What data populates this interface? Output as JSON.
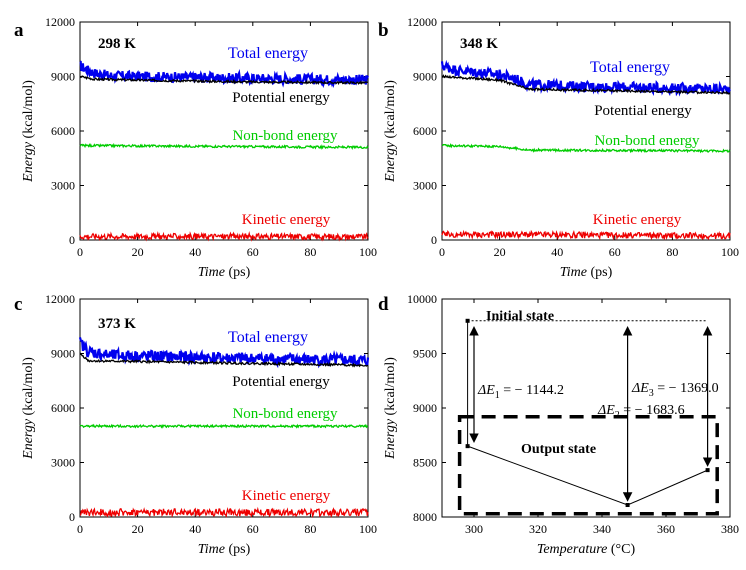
{
  "chart_data": [
    {
      "panel": "a",
      "type": "line",
      "temperature_label": "298 K",
      "xlabel": {
        "italic": "Time",
        "rest": " (ps)"
      },
      "ylabel": {
        "italic": "Energy",
        "rest": " (kcal/mol)"
      },
      "xlim": [
        0,
        100
      ],
      "ylim": [
        0,
        12000
      ],
      "xticks": [
        0,
        20,
        40,
        60,
        80,
        100
      ],
      "yticks": [
        0,
        3000,
        6000,
        9000,
        12000
      ],
      "series": [
        {
          "name": "Total energy",
          "color": "#0000ee",
          "points": [
            [
              0,
              9600
            ],
            [
              2,
              9400
            ],
            [
              5,
              9200
            ],
            [
              10,
              9050
            ],
            [
              20,
              9000
            ],
            [
              40,
              8950
            ],
            [
              60,
              8900
            ],
            [
              80,
              8850
            ],
            [
              100,
              8820
            ]
          ],
          "noise": 280
        },
        {
          "name": "Potential energy",
          "color": "#000000",
          "points": [
            [
              0,
              9000
            ],
            [
              5,
              8850
            ],
            [
              20,
              8800
            ],
            [
              60,
              8700
            ],
            [
              100,
              8650
            ]
          ],
          "noise": 60
        },
        {
          "name": "Non-bond energy",
          "color": "#00cc00",
          "points": [
            [
              0,
              5200
            ],
            [
              50,
              5150
            ],
            [
              100,
              5100
            ]
          ],
          "noise": 60
        },
        {
          "name": "Kinetic energy",
          "color": "#ee0000",
          "points": [
            [
              0,
              200
            ],
            [
              50,
              200
            ],
            [
              100,
              180
            ]
          ],
          "noise": 160
        }
      ]
    },
    {
      "panel": "b",
      "type": "line",
      "temperature_label": "348 K",
      "xlabel": {
        "italic": "Time",
        "rest": " (ps)"
      },
      "ylabel": {
        "italic": "Energy",
        "rest": " (kcal/mol)"
      },
      "xlim": [
        0,
        100
      ],
      "ylim": [
        0,
        12000
      ],
      "xticks": [
        0,
        20,
        40,
        60,
        80,
        100
      ],
      "yticks": [
        0,
        3000,
        6000,
        9000,
        12000
      ],
      "series": [
        {
          "name": "Total energy",
          "color": "#0000ee",
          "points": [
            [
              0,
              9600
            ],
            [
              5,
              9350
            ],
            [
              20,
              9100
            ],
            [
              25,
              8900
            ],
            [
              30,
              8550
            ],
            [
              50,
              8450
            ],
            [
              100,
              8300
            ]
          ],
          "noise": 280
        },
        {
          "name": "Potential energy",
          "color": "#000000",
          "points": [
            [
              0,
              9000
            ],
            [
              20,
              8800
            ],
            [
              30,
              8300
            ],
            [
              100,
              8100
            ]
          ],
          "noise": 60
        },
        {
          "name": "Non-bond energy",
          "color": "#00cc00",
          "points": [
            [
              0,
              5200
            ],
            [
              20,
              5150
            ],
            [
              30,
              4950
            ],
            [
              100,
              4900
            ]
          ],
          "noise": 60
        },
        {
          "name": "Kinetic energy",
          "color": "#ee0000",
          "points": [
            [
              0,
              300
            ],
            [
              25,
              300
            ],
            [
              100,
              220
            ]
          ],
          "noise": 170
        }
      ]
    },
    {
      "panel": "c",
      "type": "line",
      "temperature_label": "373 K",
      "xlabel": {
        "italic": "Time",
        "rest": " (ps)"
      },
      "ylabel": {
        "italic": "Energy",
        "rest": " (kcal/mol)"
      },
      "xlim": [
        0,
        100
      ],
      "ylim": [
        0,
        12000
      ],
      "xticks": [
        0,
        20,
        40,
        60,
        80,
        100
      ],
      "yticks": [
        0,
        3000,
        6000,
        9000,
        12000
      ],
      "series": [
        {
          "name": "Total energy",
          "color": "#0000ee",
          "points": [
            [
              0,
              9600
            ],
            [
              3,
              9100
            ],
            [
              10,
              8900
            ],
            [
              50,
              8750
            ],
            [
              100,
              8600
            ]
          ],
          "noise": 320
        },
        {
          "name": "Potential energy",
          "color": "#000000",
          "points": [
            [
              0,
              9000
            ],
            [
              3,
              8600
            ],
            [
              100,
              8350
            ]
          ],
          "noise": 60
        },
        {
          "name": "Non-bond energy",
          "color": "#00cc00",
          "points": [
            [
              0,
              5000
            ],
            [
              100,
              5000
            ]
          ],
          "noise": 60
        },
        {
          "name": "Kinetic energy",
          "color": "#ee0000",
          "points": [
            [
              0,
              250
            ],
            [
              100,
              250
            ]
          ],
          "noise": 200
        }
      ]
    },
    {
      "panel": "d",
      "type": "line",
      "xlabel": {
        "italic": "Temperature",
        "rest": " (°C)"
      },
      "ylabel": {
        "italic": "Energy",
        "rest": " (kcal/mol)"
      },
      "xlim": [
        290,
        380
      ],
      "ylim": [
        8000,
        10000
      ],
      "xticks": [
        300,
        320,
        340,
        360,
        380
      ],
      "yticks": [
        8000,
        8500,
        9000,
        9500,
        10000
      ],
      "points": [
        {
          "x": 298,
          "y": 9800
        },
        {
          "x": 298,
          "y": 8650
        },
        {
          "x": 348,
          "y": 8110
        },
        {
          "x": 373,
          "y": 8430
        }
      ],
      "annotations": {
        "initial_state": "Initial state",
        "output_state": "Output state",
        "delta_e1": {
          "sym": "ΔE",
          "sub": "1",
          "value": " = − 1144.2"
        },
        "delta_e2": {
          "sym": "ΔE",
          "sub": "2",
          "value": " = − 1683.6"
        },
        "delta_e3": {
          "sym": "ΔE",
          "sub": "3",
          "value": " = − 1369.0"
        }
      }
    }
  ]
}
